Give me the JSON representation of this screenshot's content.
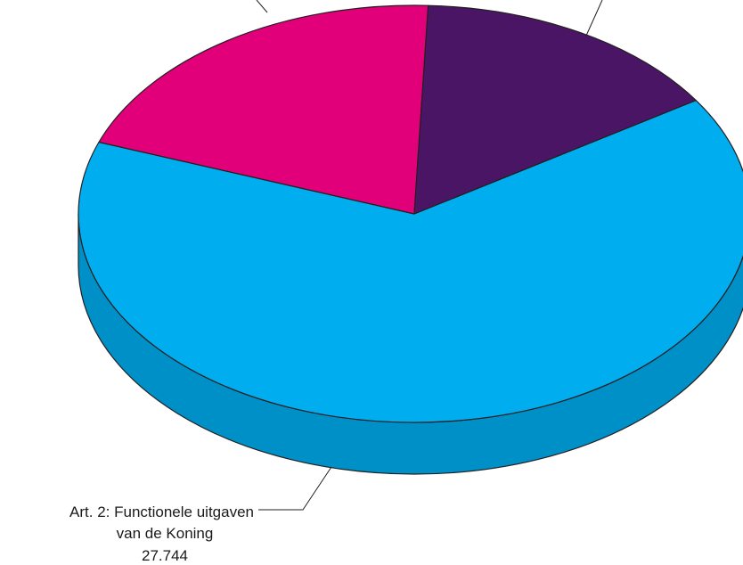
{
  "chart_data": {
    "type": "pie",
    "style": "3d",
    "slices": [
      {
        "label_lines": [
          "Art. 2: Functionele uitgaven",
          "van de Koning",
          "27.744"
        ],
        "value": 27744,
        "color": "#00aeef",
        "side_color": "#0090c8"
      },
      {
        "label_lines": [],
        "value": 8600,
        "color": "#e2007a",
        "side_color": "#b40062"
      },
      {
        "label_lines": [],
        "value": 6500,
        "color": "#4b1566",
        "side_color": "#35104a"
      }
    ]
  }
}
